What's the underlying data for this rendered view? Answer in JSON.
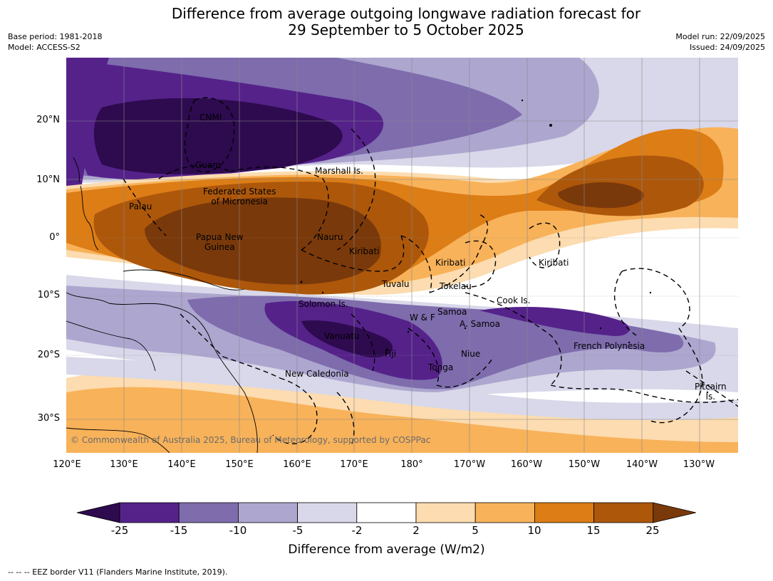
{
  "header": {
    "title_line1": "Difference from average outgoing longwave radiation forecast for",
    "title_line2": "29 September to 5 October 2025",
    "base_period": "Base period: 1981-2018",
    "model": "Model: ACCESS-S2",
    "model_run": "Model run: 22/09/2025",
    "issued": "Issued: 24/09/2025"
  },
  "map": {
    "lat_labels": [
      "20°N",
      "10°N",
      "0°",
      "10°S",
      "20°S",
      "30°S"
    ],
    "lon_labels": [
      "120°E",
      "130°E",
      "140°E",
      "150°E",
      "160°E",
      "170°E",
      "180°",
      "170°W",
      "160°W",
      "150°W",
      "140°W",
      "130°W"
    ],
    "places": [
      "CNMI",
      "Guam",
      "Marshall Is.",
      "Federated States\nof Micronesia",
      "Palau",
      "Papua New\nGuinea",
      "Nauru",
      "Kiribati",
      "Kiribati",
      "Kiribati",
      "Tuvalu",
      "Tokelau",
      "Cook Is.",
      "Solomon Is.",
      "W & F",
      "Samoa",
      "A. Samoa",
      "Vanuatu",
      "Fiji",
      "Niue",
      "Tonga",
      "French Polynesia",
      "New Caledonia",
      "Pitcairn\nIs."
    ],
    "copyright": "© Commonwealth of Australia 2025, Bureau of Meteorology, supported by COSPPac"
  },
  "colorbar": {
    "ticks": [
      "-25",
      "-15",
      "-10",
      "-5",
      "-2",
      "2",
      "5",
      "10",
      "15",
      "25"
    ],
    "colors": [
      "#2e0a4f",
      "#55228a",
      "#7e6cad",
      "#ada6cf",
      "#d9d8ea",
      "#ffffff",
      "#fcdcb0",
      "#f8b25a",
      "#dc7d16",
      "#ad570b",
      "#7a390a"
    ],
    "label": "Difference from average (W/m2)"
  },
  "footer": {
    "eez_note": "--  --  -- EEZ border V11 (Flanders Marine Institute, 2019)."
  }
}
